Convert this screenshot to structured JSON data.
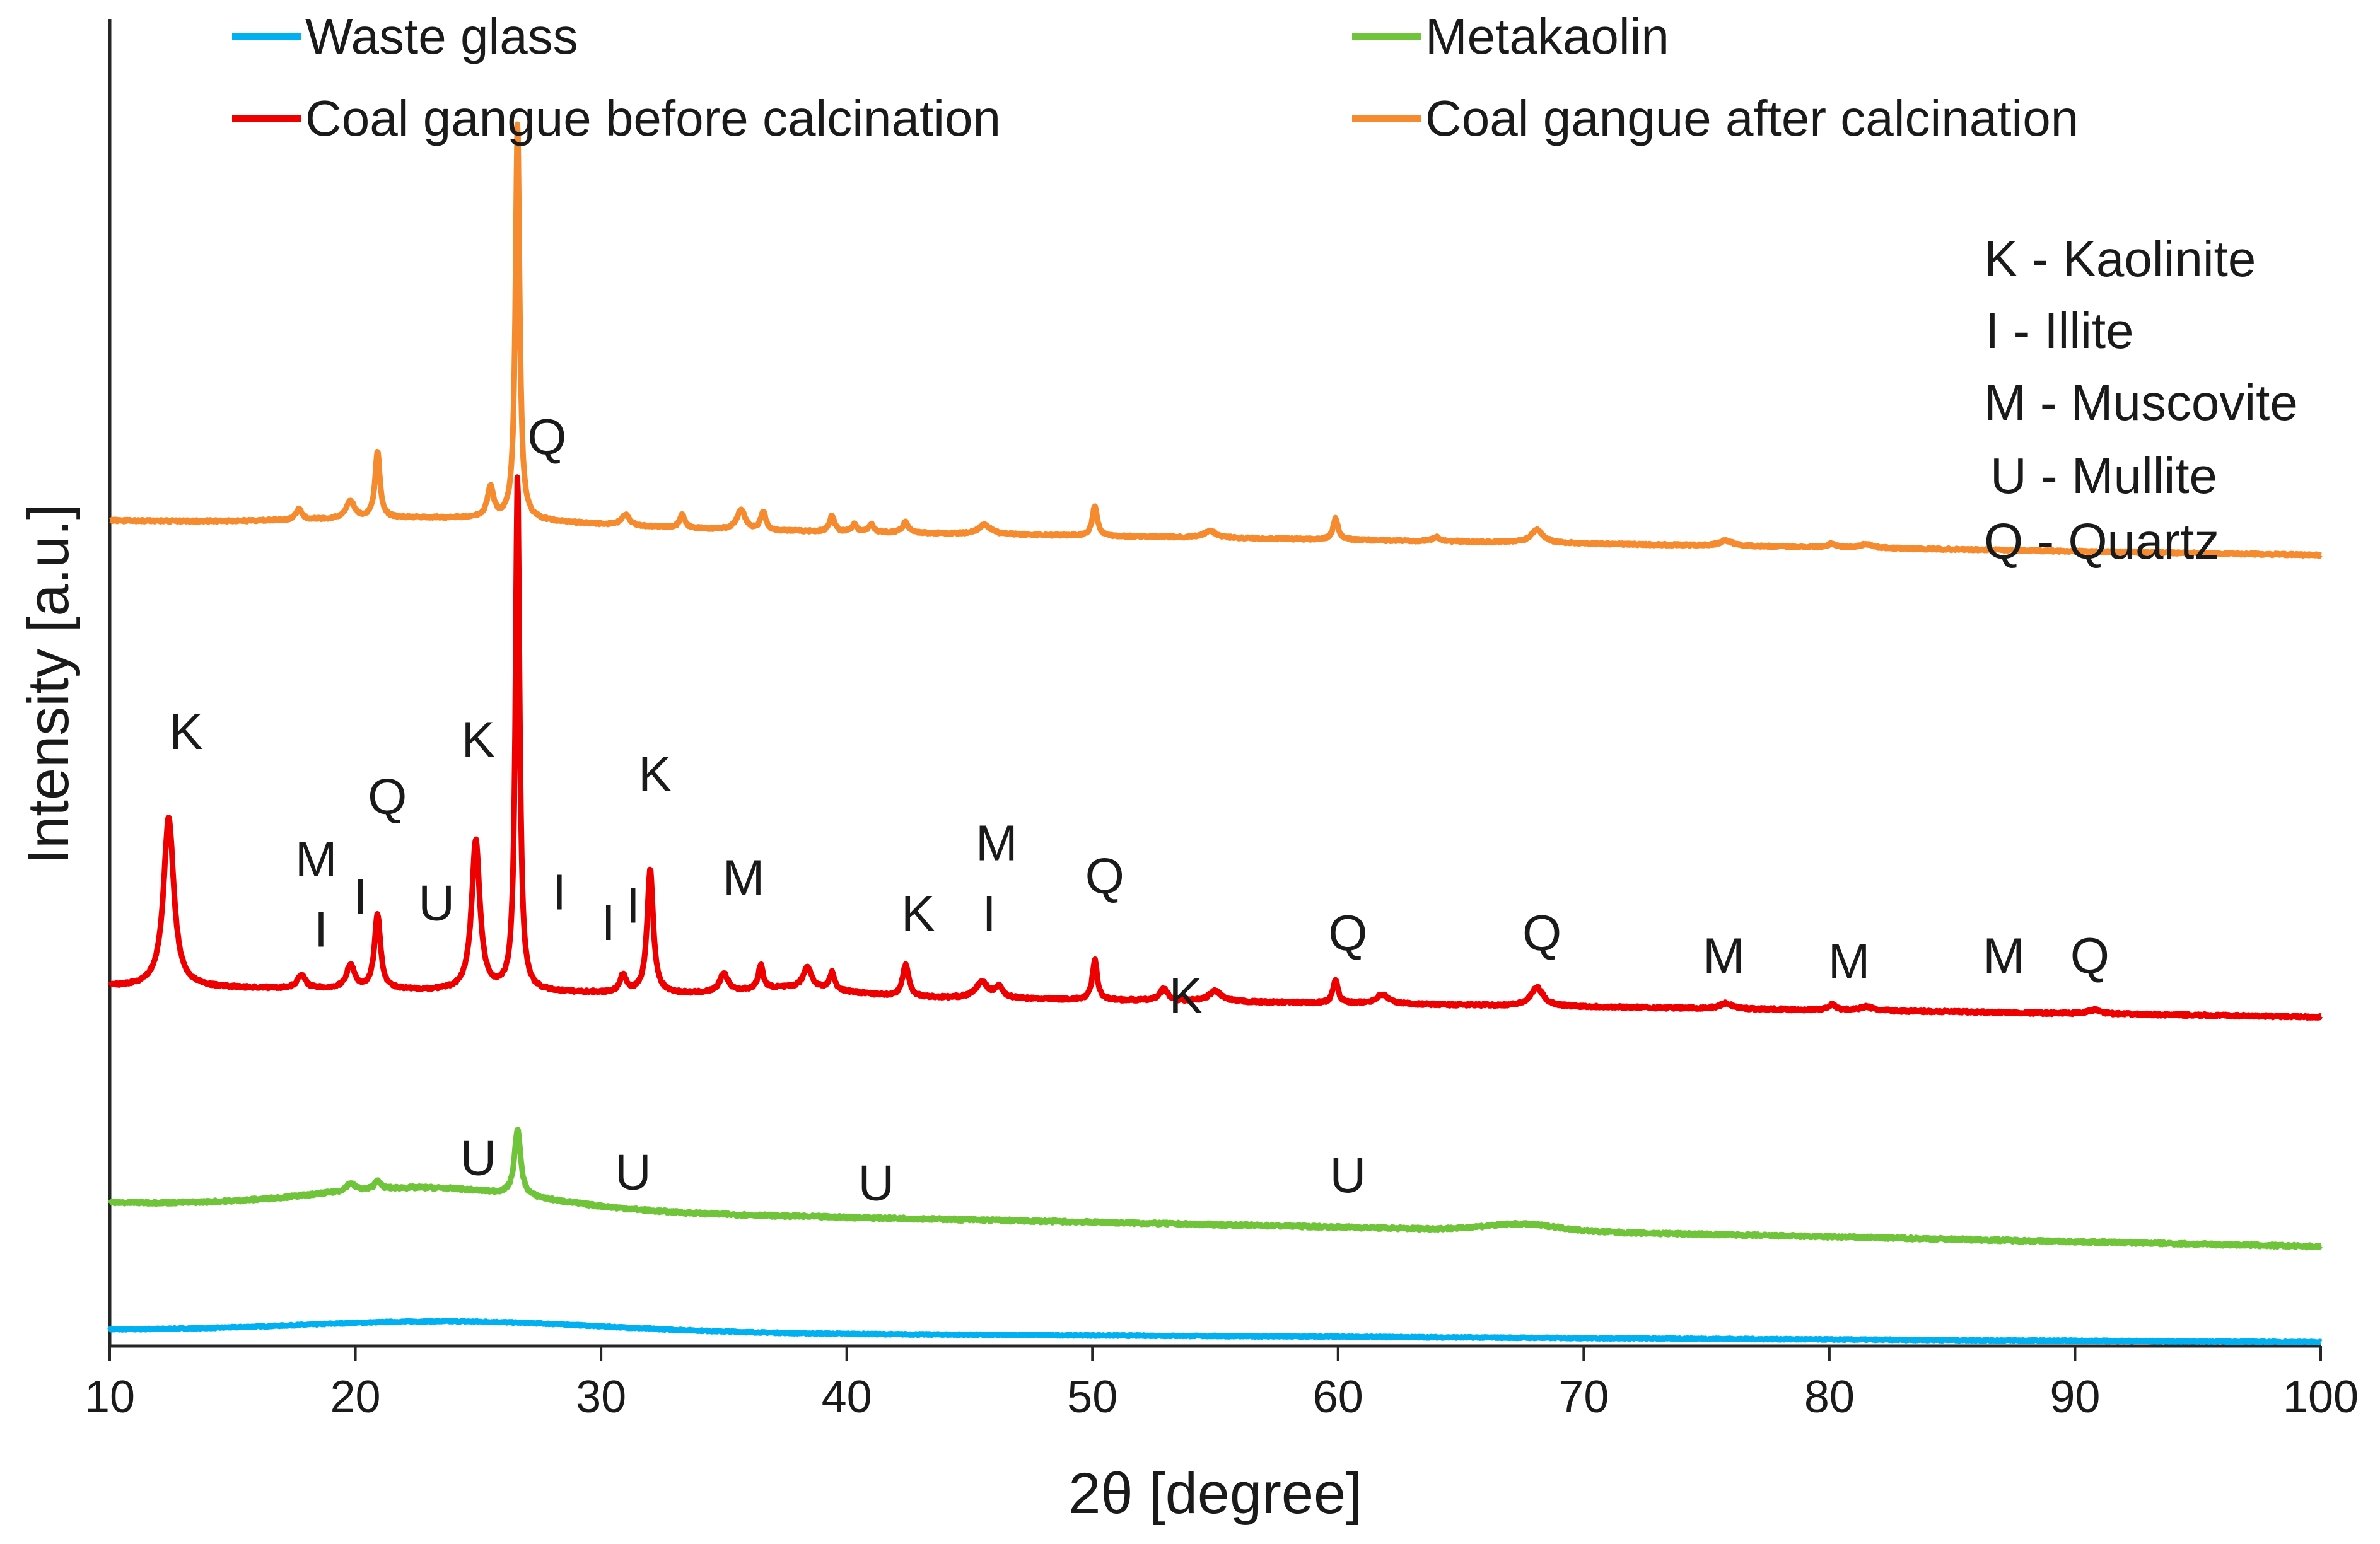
{
  "chart_data": {
    "type": "line",
    "title": "",
    "xlabel": "2θ [degree]",
    "ylabel": "Intensity [a.u.]",
    "xlim": [
      10,
      100
    ],
    "xticks": [
      10,
      20,
      30,
      40,
      50,
      60,
      70,
      80,
      90,
      100
    ],
    "xtick_labels": [
      "10",
      "20",
      "30",
      "40",
      "50",
      "60",
      "70",
      "80",
      "90",
      "100"
    ],
    "ylim": [
      0,
      100
    ],
    "grid": false,
    "legend_position": "top",
    "series": [
      {
        "name": "Waste glass",
        "color": "#00b0f0",
        "baseline_start": 1.2,
        "baseline_end": 0.3,
        "noise": 0.1,
        "humps": [
          {
            "x": 24,
            "h": 0.8,
            "w": 6
          }
        ],
        "peaks": []
      },
      {
        "name": "Metakaolin",
        "color": "#70c43a",
        "baseline_start": 10.8,
        "baseline_end": 7.5,
        "noise": 0.2,
        "humps": [
          {
            "x": 23,
            "h": 1.6,
            "w": 4.5
          },
          {
            "x": 67.5,
            "h": 0.5,
            "w": 1.5
          }
        ],
        "peaks": [
          {
            "x": 26.6,
            "h": 5.0,
            "w": 0.15
          },
          {
            "x": 20.9,
            "h": 0.7,
            "w": 0.12
          },
          {
            "x": 19.8,
            "h": 0.6,
            "w": 0.2
          }
        ]
      },
      {
        "name": "Coal gangue before calcination",
        "color": "#ee0000",
        "baseline_start": 27.1,
        "baseline_end": 24.8,
        "noise": 0.18,
        "humps": [
          {
            "x": 38,
            "h": 0.6,
            "w": 2
          }
        ],
        "peaks": [
          {
            "x": 12.4,
            "h": 12.8,
            "w": 0.25
          },
          {
            "x": 17.8,
            "h": 1.0,
            "w": 0.2
          },
          {
            "x": 19.8,
            "h": 1.8,
            "w": 0.2
          },
          {
            "x": 20.9,
            "h": 5.6,
            "w": 0.15
          },
          {
            "x": 24.9,
            "h": 11.3,
            "w": 0.2
          },
          {
            "x": 26.6,
            "h": 39.0,
            "w": 0.1
          },
          {
            "x": 30.9,
            "h": 1.3,
            "w": 0.15
          },
          {
            "x": 32.0,
            "h": 9.3,
            "w": 0.15
          },
          {
            "x": 35.0,
            "h": 1.4,
            "w": 0.2
          },
          {
            "x": 36.5,
            "h": 1.8,
            "w": 0.12
          },
          {
            "x": 38.4,
            "h": 1.6,
            "w": 0.2
          },
          {
            "x": 39.4,
            "h": 1.3,
            "w": 0.12
          },
          {
            "x": 42.4,
            "h": 2.4,
            "w": 0.15
          },
          {
            "x": 45.5,
            "h": 1.2,
            "w": 0.3
          },
          {
            "x": 46.2,
            "h": 0.8,
            "w": 0.2
          },
          {
            "x": 50.1,
            "h": 3.0,
            "w": 0.12
          },
          {
            "x": 52.9,
            "h": 0.9,
            "w": 0.2
          },
          {
            "x": 55.0,
            "h": 0.8,
            "w": 0.3
          },
          {
            "x": 59.9,
            "h": 1.8,
            "w": 0.12
          },
          {
            "x": 61.8,
            "h": 0.7,
            "w": 0.3
          },
          {
            "x": 68.1,
            "h": 1.4,
            "w": 0.3
          },
          {
            "x": 75.8,
            "h": 0.4,
            "w": 0.3
          },
          {
            "x": 80.1,
            "h": 0.4,
            "w": 0.2
          },
          {
            "x": 81.5,
            "h": 0.3,
            "w": 0.3
          },
          {
            "x": 90.8,
            "h": 0.3,
            "w": 0.3
          }
        ]
      },
      {
        "name": "Coal gangue after calcination",
        "color": "#f58a2e",
        "baseline_start": 62.2,
        "baseline_end": 59.6,
        "noise": 0.15,
        "humps": [
          {
            "x": 24,
            "h": 0.6,
            "w": 5
          }
        ],
        "peaks": [
          {
            "x": 17.7,
            "h": 0.8,
            "w": 0.15
          },
          {
            "x": 19.8,
            "h": 1.3,
            "w": 0.2
          },
          {
            "x": 20.9,
            "h": 5.0,
            "w": 0.12
          },
          {
            "x": 25.5,
            "h": 2.3,
            "w": 0.15
          },
          {
            "x": 26.6,
            "h": 30.0,
            "w": 0.1
          },
          {
            "x": 31.0,
            "h": 0.8,
            "w": 0.2
          },
          {
            "x": 33.3,
            "h": 1.0,
            "w": 0.12
          },
          {
            "x": 35.7,
            "h": 1.5,
            "w": 0.2
          },
          {
            "x": 36.6,
            "h": 1.4,
            "w": 0.12
          },
          {
            "x": 39.4,
            "h": 1.2,
            "w": 0.12
          },
          {
            "x": 40.3,
            "h": 0.6,
            "w": 0.12
          },
          {
            "x": 41.0,
            "h": 0.6,
            "w": 0.12
          },
          {
            "x": 42.4,
            "h": 0.8,
            "w": 0.15
          },
          {
            "x": 45.6,
            "h": 0.7,
            "w": 0.3
          },
          {
            "x": 50.1,
            "h": 2.3,
            "w": 0.12
          },
          {
            "x": 54.8,
            "h": 0.5,
            "w": 0.3
          },
          {
            "x": 59.9,
            "h": 1.6,
            "w": 0.12
          },
          {
            "x": 64.0,
            "h": 0.3,
            "w": 0.2
          },
          {
            "x": 68.1,
            "h": 1.0,
            "w": 0.3
          },
          {
            "x": 75.8,
            "h": 0.4,
            "w": 0.3
          },
          {
            "x": 80.1,
            "h": 0.3,
            "w": 0.2
          },
          {
            "x": 81.5,
            "h": 0.3,
            "w": 0.3
          }
        ]
      }
    ],
    "annotations": [
      {
        "text": "K",
        "x": 13.1,
        "y": 45.0
      },
      {
        "text": "M",
        "x": 18.4,
        "y": 35.4
      },
      {
        "text": "I",
        "x": 18.6,
        "y": 30.1
      },
      {
        "text": "Q",
        "x": 21.3,
        "y": 40.1
      },
      {
        "text": "I",
        "x": 20.2,
        "y": 32.6
      },
      {
        "text": "U",
        "x": 23.3,
        "y": 32.1
      },
      {
        "text": "K",
        "x": 25.0,
        "y": 44.4
      },
      {
        "text": "Q",
        "x": 27.8,
        "y": 67.2
      },
      {
        "text": "I",
        "x": 28.3,
        "y": 32.9
      },
      {
        "text": "I",
        "x": 30.3,
        "y": 30.6
      },
      {
        "text": "I",
        "x": 31.3,
        "y": 31.9
      },
      {
        "text": "K",
        "x": 32.2,
        "y": 41.8
      },
      {
        "text": "M",
        "x": 35.8,
        "y": 34.0
      },
      {
        "text": "K",
        "x": 42.9,
        "y": 31.3
      },
      {
        "text": "M",
        "x": 46.1,
        "y": 36.6
      },
      {
        "text": "I",
        "x": 45.8,
        "y": 31.3
      },
      {
        "text": "Q",
        "x": 50.5,
        "y": 34.1
      },
      {
        "text": "K",
        "x": 53.8,
        "y": 25.1
      },
      {
        "text": "Q",
        "x": 60.4,
        "y": 29.8
      },
      {
        "text": "Q",
        "x": 68.3,
        "y": 29.8
      },
      {
        "text": "M",
        "x": 75.7,
        "y": 28.1
      },
      {
        "text": "M",
        "x": 80.8,
        "y": 27.7
      },
      {
        "text": "M",
        "x": 87.1,
        "y": 28.1
      },
      {
        "text": "Q",
        "x": 90.6,
        "y": 28.1
      },
      {
        "text": "U",
        "x": 25.0,
        "y": 12.9
      },
      {
        "text": "U",
        "x": 31.3,
        "y": 11.8
      },
      {
        "text": "U",
        "x": 41.2,
        "y": 11.0
      },
      {
        "text": "U",
        "x": 60.4,
        "y": 11.6
      }
    ],
    "phase_key": [
      "K - Kaolinite",
      "I - Illite",
      "M - Muscovite",
      "U - Mullite",
      "Q - Quartz"
    ]
  }
}
